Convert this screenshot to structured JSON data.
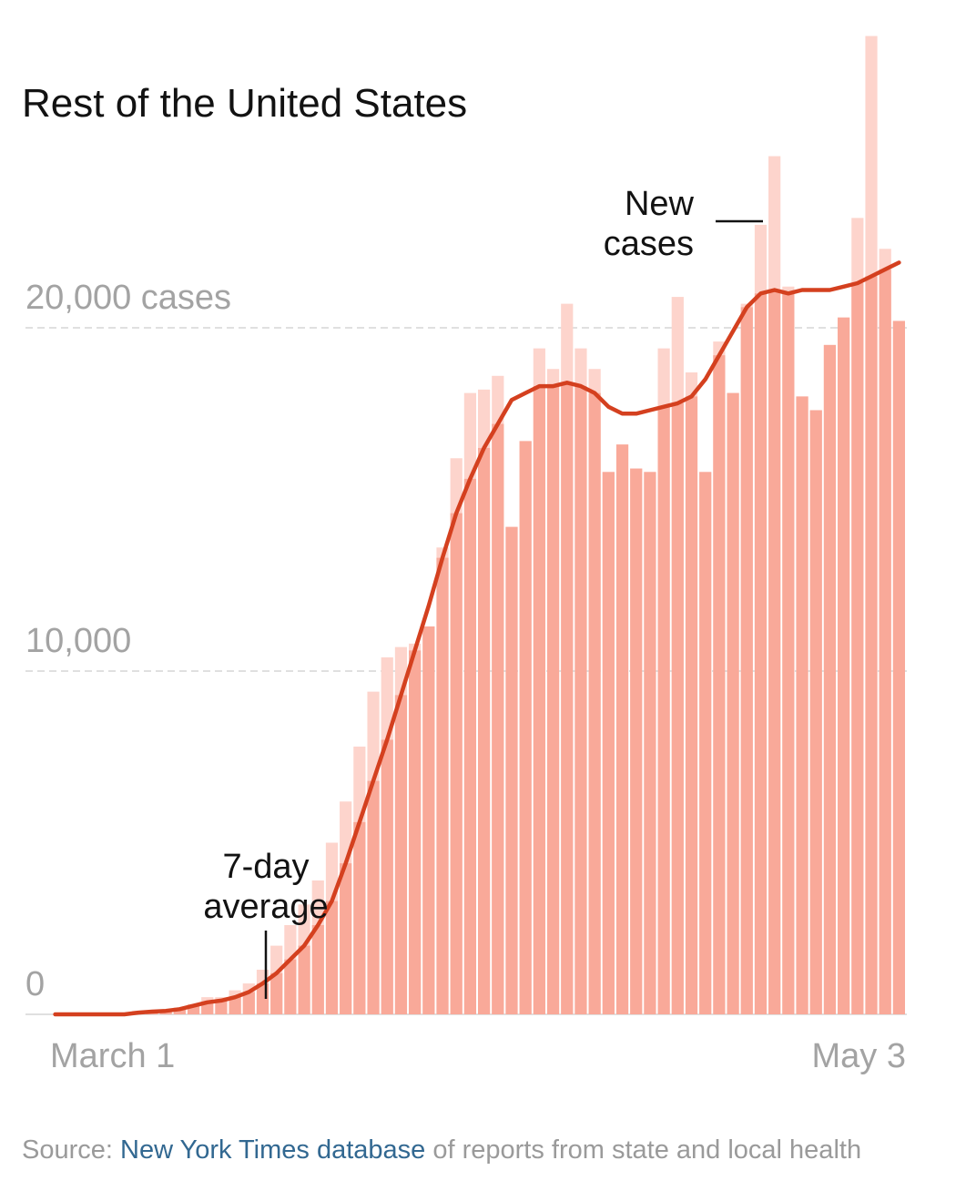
{
  "chart_data": {
    "type": "bar",
    "title": "Rest of the United States",
    "ylim": [
      0,
      28500
    ],
    "y_ticks": [
      {
        "value": 0,
        "label": "0"
      },
      {
        "value": 10000,
        "label": "10,000"
      },
      {
        "value": 20000,
        "label": "20,000 cases"
      }
    ],
    "x_labels": {
      "start": "March 1",
      "end": "May 3"
    },
    "grid": true,
    "series": [
      {
        "name": "New cases",
        "values": [
          0,
          0,
          0,
          0,
          0,
          0,
          100,
          100,
          100,
          200,
          300,
          500,
          500,
          700,
          900,
          1300,
          2000,
          2600,
          3200,
          3900,
          5000,
          6200,
          7800,
          9400,
          10400,
          10700,
          10800,
          11300,
          13600,
          16200,
          18100,
          18200,
          18600,
          14200,
          16700,
          19400,
          18800,
          20700,
          19400,
          18800,
          15800,
          16600,
          15900,
          15800,
          19400,
          20900,
          18700,
          15800,
          19600,
          18100,
          20700,
          23000,
          25000,
          21200,
          18000,
          17600,
          19500,
          20300,
          23200,
          28500,
          22300,
          20200
        ],
        "color": "#f5a394"
      },
      {
        "name": "7-day average",
        "values": [
          0,
          0,
          0,
          0,
          0,
          0,
          50,
          80,
          100,
          150,
          250,
          350,
          400,
          500,
          650,
          900,
          1200,
          1600,
          2000,
          2600,
          3300,
          4400,
          5600,
          6800,
          8000,
          9300,
          10600,
          11900,
          13300,
          14600,
          15600,
          16500,
          17200,
          17900,
          18100,
          18300,
          18300,
          18400,
          18300,
          18100,
          17700,
          17500,
          17500,
          17600,
          17700,
          17800,
          18000,
          18500,
          19200,
          19900,
          20600,
          21000,
          21100,
          21000,
          21100,
          21100,
          21100,
          21200,
          21300,
          21500,
          21700,
          21900
        ],
        "color": "#d4401f"
      }
    ],
    "annotations": [
      {
        "text_lines": [
          "New",
          "cases"
        ],
        "target": "New cases"
      },
      {
        "text_lines": [
          "7-day",
          "average"
        ],
        "target": "7-day average"
      }
    ]
  },
  "source": {
    "prefix": "Source: ",
    "link": "New York Times database",
    "suffix": " of reports from state and local health"
  }
}
